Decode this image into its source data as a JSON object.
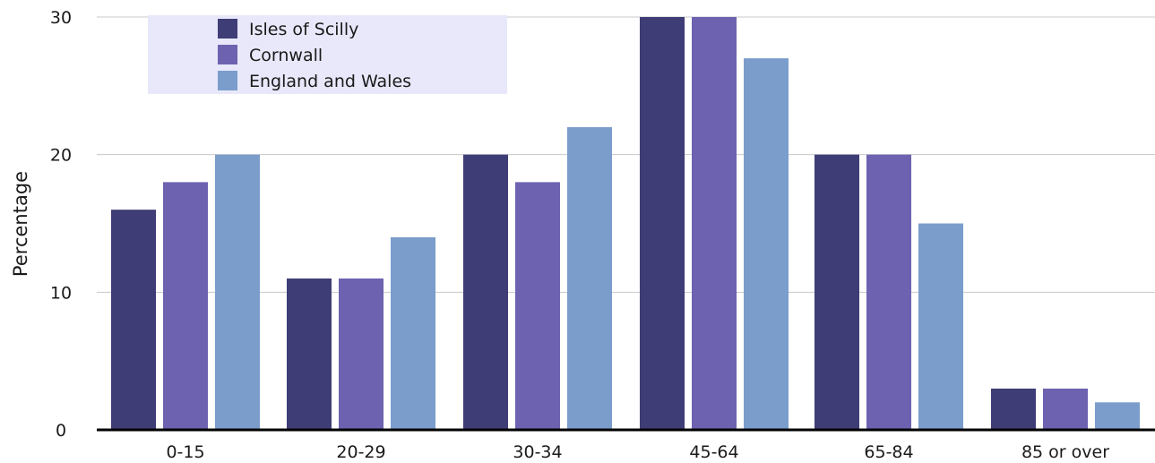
{
  "chart_data": {
    "type": "bar",
    "title": "",
    "xlabel": "",
    "ylabel": "Percentage",
    "categories": [
      "0-15",
      "20-29",
      "30-34",
      "45-64",
      "65-84",
      "85 or over"
    ],
    "series": [
      {
        "name": "Isles of Scilly",
        "values": [
          16,
          11,
          20,
          30,
          20,
          3
        ],
        "color": "#3f3d75"
      },
      {
        "name": "Cornwall",
        "values": [
          18,
          11,
          18,
          30,
          20,
          3
        ],
        "color": "#6c62b0"
      },
      {
        "name": "England and Wales",
        "values": [
          20,
          14,
          22,
          27,
          15,
          2
        ],
        "color": "#7b9dcb"
      }
    ],
    "ylim": [
      0,
      30
    ],
    "yticks": [
      0,
      10,
      20,
      30
    ],
    "grid": true,
    "legend_position": "top-left",
    "legend_background": "#e8e8fa",
    "gridline_color": "#c8c8c8",
    "baseline_color": "#000000"
  }
}
